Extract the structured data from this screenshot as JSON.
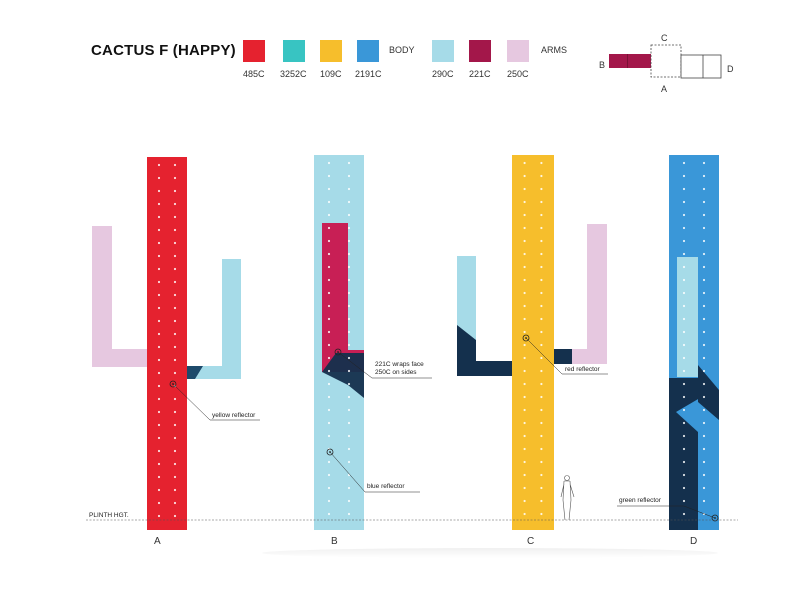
{
  "title": "CACTUS F (HAPPY)",
  "legend": {
    "body_label": "BODY",
    "arms_label": "ARMS",
    "swatches": [
      {
        "code": "485C",
        "color": "#e5222f",
        "group": "body"
      },
      {
        "code": "3252C",
        "color": "#38c4c2",
        "group": "body"
      },
      {
        "code": "109C",
        "color": "#f6be2c",
        "group": "body"
      },
      {
        "code": "2191C",
        "color": "#3a97d8",
        "group": "body"
      },
      {
        "code": "290C",
        "color": "#a6dbe8",
        "group": "arms"
      },
      {
        "code": "221C",
        "color": "#a3174a",
        "group": "arms"
      },
      {
        "code": "250C",
        "color": "#e6c8e0",
        "group": "arms"
      }
    ]
  },
  "key_plan": {
    "a": "A",
    "b": "B",
    "c": "C",
    "d": "D"
  },
  "elevations": [
    "A",
    "B",
    "C",
    "D"
  ],
  "plinth_label": "PLINTH HGT.",
  "annotations": {
    "yellow_reflector": "yellow reflector",
    "wraps_line1": "221C wraps face",
    "wraps_line2": "250C on sides",
    "blue_reflector": "blue reflector",
    "red_reflector": "red reflector",
    "green_reflector": "green reflector"
  },
  "colors": {
    "red": "#e5222f",
    "aqua": "#a6dbe8",
    "yellow": "#f6be2c",
    "blue": "#3a97d8",
    "magenta": "#c81f55",
    "pink": "#e6c8e0",
    "navy": "#14304d",
    "dots": "#ffffff"
  }
}
